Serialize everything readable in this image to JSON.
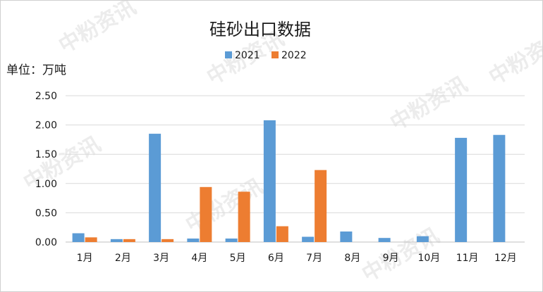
{
  "watermark": "中粉资讯",
  "chart_data": {
    "type": "bar",
    "title": "硅砂出口数据",
    "unit_label": "单位：万吨",
    "categories": [
      "1月",
      "2月",
      "3月",
      "4月",
      "5月",
      "6月",
      "7月",
      "8月",
      "9月",
      "10月",
      "11月",
      "12月"
    ],
    "series": [
      {
        "name": "2021",
        "color": "#5b9bd5",
        "values": [
          0.15,
          0.05,
          1.85,
          0.06,
          0.06,
          2.08,
          0.09,
          0.18,
          0.07,
          0.1,
          1.78,
          1.83
        ]
      },
      {
        "name": "2022",
        "color": "#ed7d31",
        "values": [
          0.08,
          0.05,
          0.05,
          0.94,
          0.86,
          0.27,
          1.23,
          null,
          null,
          null,
          null,
          null
        ]
      }
    ],
    "y_ticks": [
      "0.00",
      "0.50",
      "1.00",
      "1.50",
      "2.00",
      "2.50"
    ],
    "ylim": [
      0,
      2.5
    ],
    "grid": true,
    "legend_position": "top-center"
  }
}
